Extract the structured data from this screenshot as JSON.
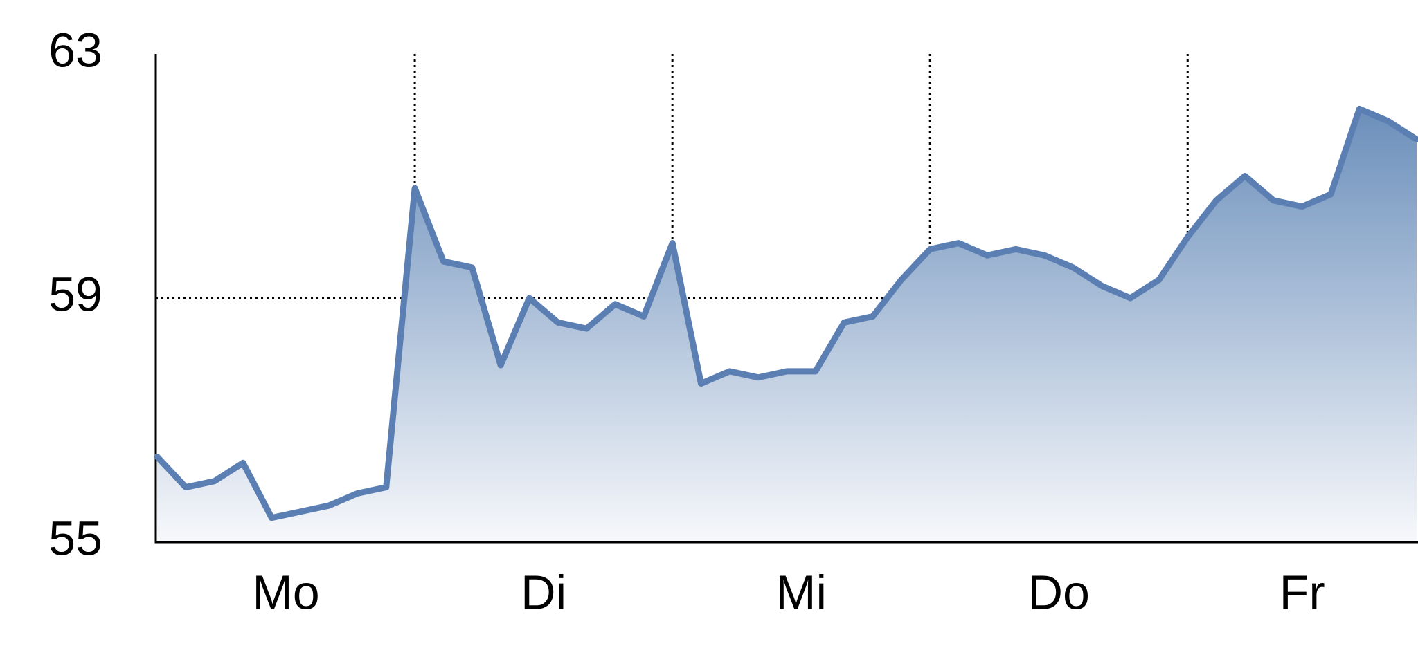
{
  "chart_data": {
    "type": "area",
    "title": "",
    "xlabel": "",
    "ylabel": "",
    "ylim": [
      55,
      63
    ],
    "yticks": [
      "63",
      "59",
      "55"
    ],
    "ytick_values": [
      63,
      59,
      55
    ],
    "day_labels": [
      "Mo",
      "Di",
      "Mi",
      "Do",
      "Fr"
    ],
    "grid": {
      "vertical": "dotted, between days",
      "horizontal": "dotted at 59"
    },
    "colors": {
      "line": "#5b7fb3",
      "fill_top": "#6b8fbb",
      "fill_bottom": "#f7f8fb",
      "axis": "#000000"
    },
    "series": [
      {
        "values": [
          56.4,
          55.9,
          56.0,
          56.3,
          55.4,
          55.5,
          55.6,
          55.8,
          55.9,
          60.8,
          59.6,
          59.5,
          57.9,
          59.0,
          58.6,
          58.5,
          58.9,
          58.7,
          59.9,
          57.6,
          57.8,
          57.7,
          57.8,
          57.8,
          58.6,
          58.7,
          59.3,
          59.8,
          59.9,
          59.7,
          59.8,
          59.7,
          59.5,
          59.2,
          59.0,
          59.3,
          60.0,
          60.6,
          61.0,
          60.6,
          60.5,
          60.7,
          62.1,
          61.9,
          61.6
        ]
      }
    ]
  }
}
